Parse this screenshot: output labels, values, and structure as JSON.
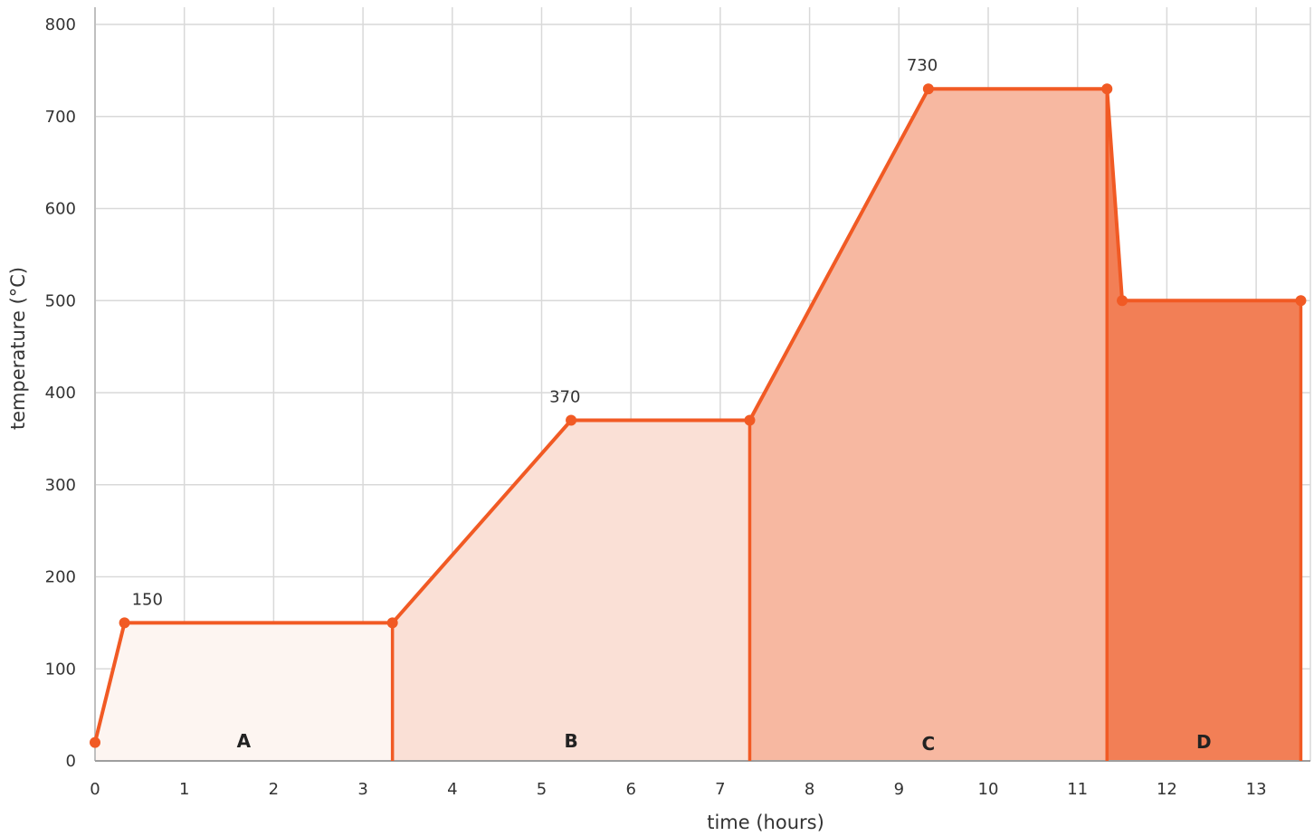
{
  "chart_data": {
    "type": "area",
    "xlabel": "time (hours)",
    "ylabel": "temperature (°C)",
    "xlim": [
      0,
      13.55
    ],
    "ylim": [
      0,
      800
    ],
    "grid": true,
    "x_ticks": [
      0,
      1,
      2,
      3,
      4,
      5,
      6,
      7,
      8,
      9,
      10,
      11,
      12,
      13
    ],
    "y_ticks": [
      0,
      100,
      200,
      300,
      400,
      500,
      600,
      700,
      800
    ],
    "line_color": "#f15a24",
    "points": [
      {
        "x": 0,
        "y": 20
      },
      {
        "x": 0.33,
        "y": 150
      },
      {
        "x": 3.33,
        "y": 150
      },
      {
        "x": 5.33,
        "y": 370
      },
      {
        "x": 7.33,
        "y": 370
      },
      {
        "x": 9.33,
        "y": 730
      },
      {
        "x": 11.33,
        "y": 730
      },
      {
        "x": 11.5,
        "y": 500
      },
      {
        "x": 13.5,
        "y": 500
      }
    ],
    "regions": [
      {
        "label": "A",
        "x_start": 0,
        "x_end": 3.33,
        "color": "#fdf5f1"
      },
      {
        "label": "B",
        "x_start": 3.33,
        "x_end": 7.33,
        "color": "#fae0d6"
      },
      {
        "label": "C",
        "x_start": 7.33,
        "x_end": 11.33,
        "color": "#f7b8a1"
      },
      {
        "label": "D",
        "x_start": 11.33,
        "x_end": 13.5,
        "color": "#f27f56"
      }
    ],
    "annotations": [
      {
        "text": "150",
        "x": 0.33,
        "y": 150
      },
      {
        "text": "370",
        "x": 5.33,
        "y": 370
      },
      {
        "text": "730",
        "x": 9.33,
        "y": 730
      }
    ]
  }
}
